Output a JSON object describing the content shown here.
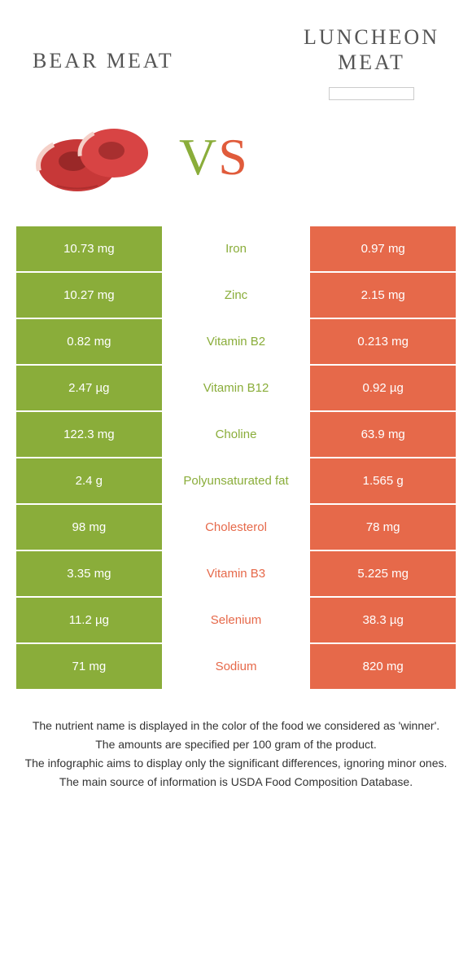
{
  "header": {
    "left_title": "BEAR MEAT",
    "right_title_line1": "LUNCHEON",
    "right_title_line2": "MEAT"
  },
  "vs": {
    "v": "V",
    "s": "S"
  },
  "colors": {
    "green": "#8aad3a",
    "orange": "#e6694a",
    "meat_red": "#c73838",
    "meat_dark": "#9a2828",
    "meat_fat": "#f5d0c8"
  },
  "rows": [
    {
      "left": "10.73 mg",
      "mid": "Iron",
      "right": "0.97 mg",
      "winner": "left"
    },
    {
      "left": "10.27 mg",
      "mid": "Zinc",
      "right": "2.15 mg",
      "winner": "left"
    },
    {
      "left": "0.82 mg",
      "mid": "Vitamin B2",
      "right": "0.213 mg",
      "winner": "left"
    },
    {
      "left": "2.47 µg",
      "mid": "Vitamin B12",
      "right": "0.92 µg",
      "winner": "left"
    },
    {
      "left": "122.3 mg",
      "mid": "Choline",
      "right": "63.9 mg",
      "winner": "left"
    },
    {
      "left": "2.4 g",
      "mid": "Polyunsaturated fat",
      "right": "1.565 g",
      "winner": "left"
    },
    {
      "left": "98 mg",
      "mid": "Cholesterol",
      "right": "78 mg",
      "winner": "right"
    },
    {
      "left": "3.35 mg",
      "mid": "Vitamin B3",
      "right": "5.225 mg",
      "winner": "right"
    },
    {
      "left": "11.2 µg",
      "mid": "Selenium",
      "right": "38.3 µg",
      "winner": "right"
    },
    {
      "left": "71 mg",
      "mid": "Sodium",
      "right": "820 mg",
      "winner": "right"
    }
  ],
  "footer": {
    "l1": "The nutrient name is displayed in the color of the food we considered as 'winner'.",
    "l2": "The amounts are specified per 100 gram of the product.",
    "l3": "The infographic aims to display only the significant differences, ignoring minor ones.",
    "l4": "The main source of information is USDA Food Composition Database."
  }
}
